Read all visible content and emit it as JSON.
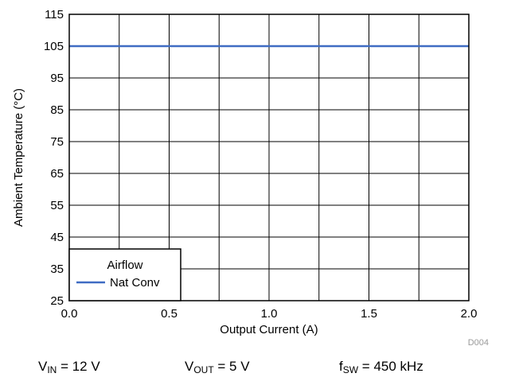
{
  "chart_data": {
    "type": "line",
    "title": "",
    "xlabel": "Output Current (A)",
    "ylabel": "Ambient Temperature (°C)",
    "xlim": [
      0.0,
      2.0
    ],
    "ylim": [
      25,
      115
    ],
    "x_ticks": [
      "0.0",
      "0.5",
      "1.0",
      "1.5",
      "2.0"
    ],
    "y_ticks": [
      "25",
      "35",
      "45",
      "55",
      "65",
      "75",
      "85",
      "95",
      "105",
      "115"
    ],
    "grid": true,
    "legend": {
      "title": "Airflow",
      "placement": "bottom-left",
      "entries": [
        "Nat Conv"
      ]
    },
    "series": [
      {
        "name": "Nat Conv",
        "color": "#3f6cc3",
        "x": [
          0.0,
          2.0
        ],
        "y": [
          105,
          105
        ]
      }
    ]
  },
  "figure_id": "D004",
  "conditions": {
    "vin": {
      "symbol": "V",
      "sub": "IN",
      "value": " = 12 V"
    },
    "vout": {
      "symbol": "V",
      "sub": "OUT",
      "value": " = 5 V"
    },
    "fsw": {
      "symbol": "f",
      "sub": "SW",
      "value": " = 450 kHz"
    }
  }
}
